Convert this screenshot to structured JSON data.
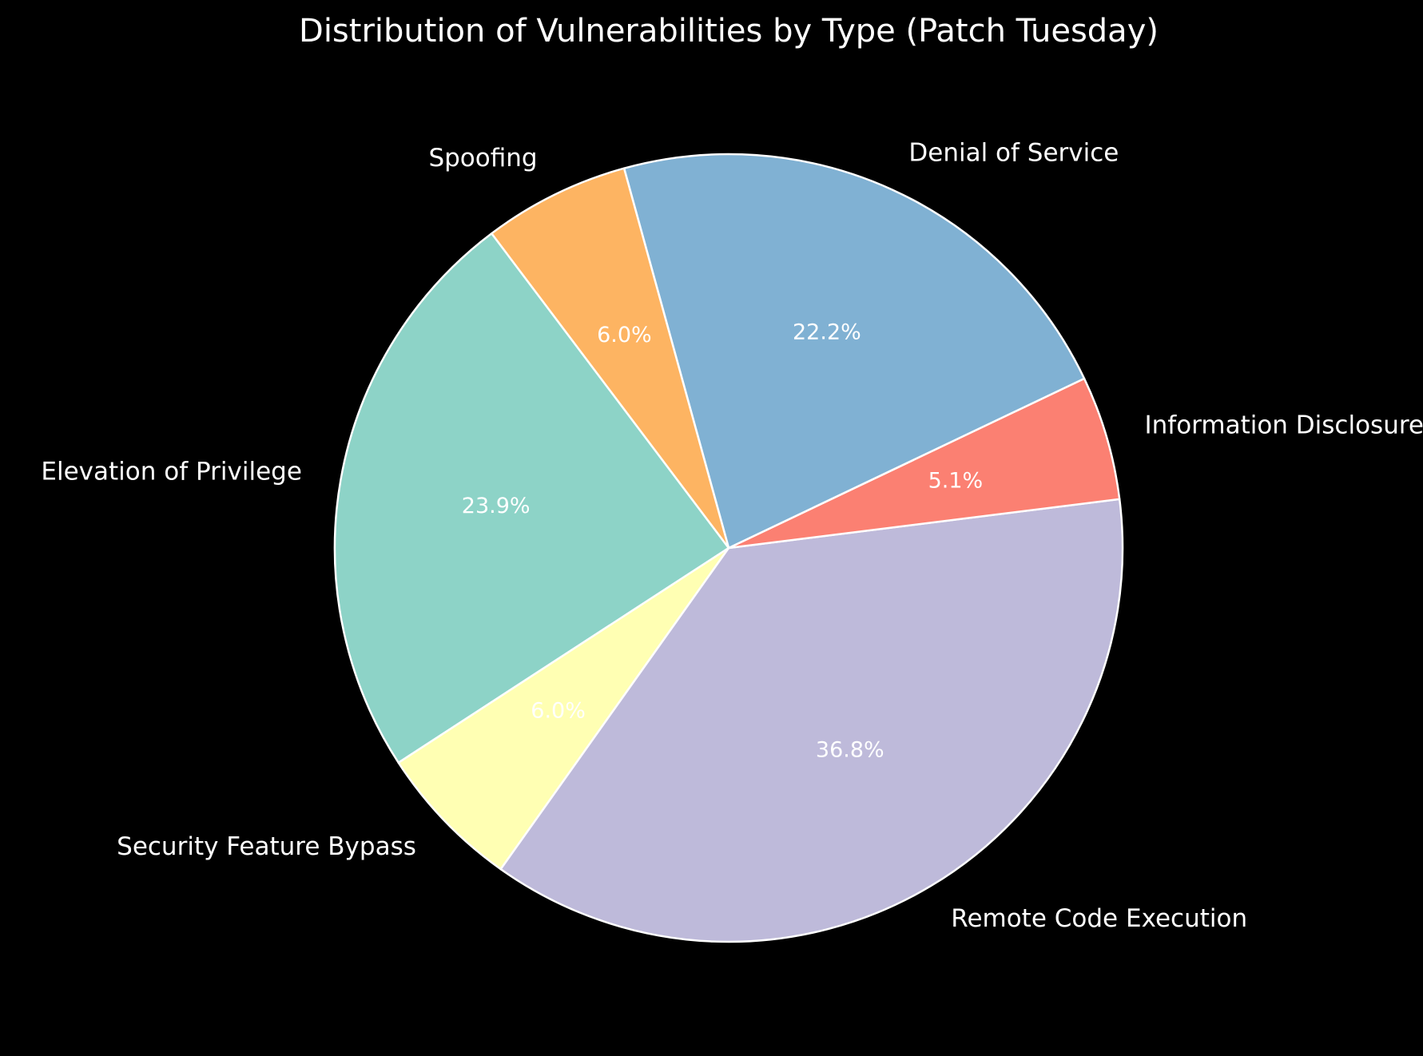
{
  "chart_data": {
    "type": "pie",
    "title": "Distribution of Vulnerabilities by Type (Patch Tuesday)",
    "start_angle_deg": 127,
    "direction": "counterclockwise",
    "slices": [
      {
        "label": "Elevation of Privilege",
        "value": 23.9,
        "pct_label": "23.9%",
        "color": "#8dd3c7"
      },
      {
        "label": "Security Feature Bypass",
        "value": 6.0,
        "pct_label": "6.0%",
        "color": "#ffffb3"
      },
      {
        "label": "Remote Code Execution",
        "value": 36.8,
        "pct_label": "36.8%",
        "color": "#bebada"
      },
      {
        "label": "Information Disclosure",
        "value": 5.1,
        "pct_label": "5.1%",
        "color": "#fb8072"
      },
      {
        "label": "Denial of Service",
        "value": 22.2,
        "pct_label": "22.2%",
        "color": "#80b1d3"
      },
      {
        "label": "Spoofing",
        "value": 6.0,
        "pct_label": "6.0%",
        "color": "#fdb462"
      }
    ],
    "background": "#000000",
    "edge_color": "#ffffff",
    "text_color": "#ffffff"
  }
}
